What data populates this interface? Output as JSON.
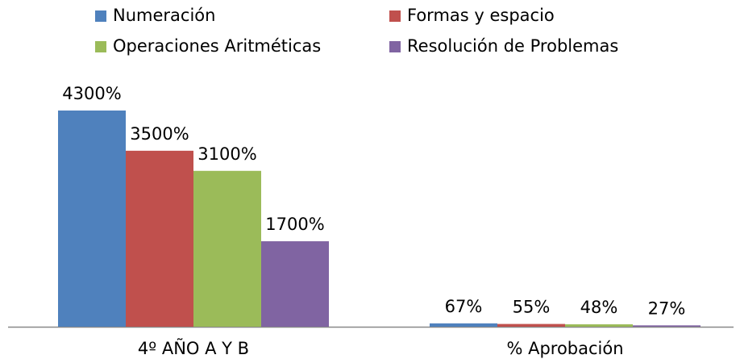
{
  "chart_data": {
    "type": "bar",
    "categories": [
      "4º AÑO A Y B",
      "% Aprobación"
    ],
    "series": [
      {
        "name": "Numeración",
        "color": "#4f81bd",
        "values": [
          4300,
          67
        ],
        "value_labels": [
          "4300%",
          "67%"
        ]
      },
      {
        "name": "Formas y espacio",
        "color": "#c0504d",
        "values": [
          3500,
          55
        ],
        "value_labels": [
          "3500%",
          "55%"
        ]
      },
      {
        "name": "Operaciones Aritméticas",
        "color": "#9bbb59",
        "values": [
          3100,
          48
        ],
        "value_labels": [
          "3100%",
          "48%"
        ]
      },
      {
        "name": "Resolución de Problemas",
        "color": "#8064a2",
        "values": [
          1700,
          27
        ],
        "value_labels": [
          "1700%",
          "27%"
        ]
      }
    ],
    "legend": "top"
  }
}
